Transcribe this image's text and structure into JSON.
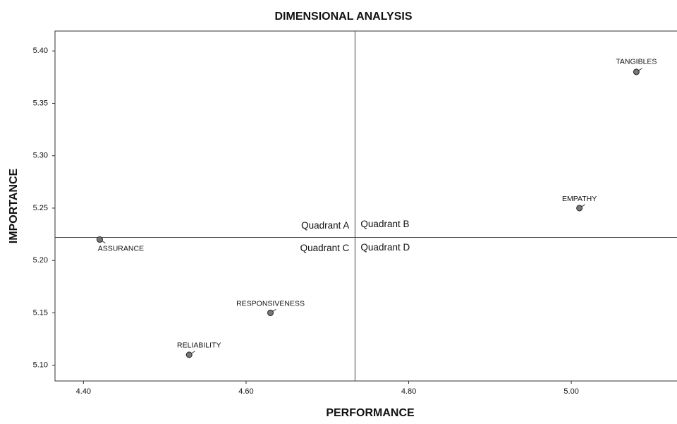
{
  "chart_data": {
    "type": "scatter",
    "title": "DIMENSIONAL ANALYSIS",
    "x_label": "PERFORMANCE",
    "y_label": "IMPORTANCE",
    "point_labels": [
      "TANGIBLES",
      "EMPATHY",
      "ASSURANCE",
      "RESPONSIVENESS",
      "RELIABILITY"
    ],
    "x": [
      5.08,
      5.01,
      4.42,
      4.63,
      4.53
    ],
    "values": [
      5.38,
      5.25,
      5.22,
      5.15,
      5.11
    ],
    "color": "#777777",
    "reference_x": 4.734,
    "reference_y": 5.222,
    "quadrant_labels": [
      "Quadrant A",
      "Quadrant B",
      "Quadrant C",
      "Quadrant D"
    ],
    "xlim": [
      4.365,
      5.13
    ],
    "ylim": [
      5.085,
      5.419
    ],
    "xticks": [
      {
        "value": 4.4,
        "label": "4.40"
      },
      {
        "value": 4.6,
        "label": "4.60"
      },
      {
        "value": 4.8,
        "label": "4.80"
      },
      {
        "value": 5.0,
        "label": "5.00"
      }
    ],
    "yticks": [
      {
        "value": 5.1,
        "label": "5.10"
      },
      {
        "value": 5.15,
        "label": "5.15"
      },
      {
        "value": 5.2,
        "label": "5.20"
      },
      {
        "value": 5.25,
        "label": "5.25"
      },
      {
        "value": 5.3,
        "label": "5.30"
      },
      {
        "value": 5.35,
        "label": "5.35"
      },
      {
        "value": 5.4,
        "label": "5.40"
      }
    ]
  }
}
